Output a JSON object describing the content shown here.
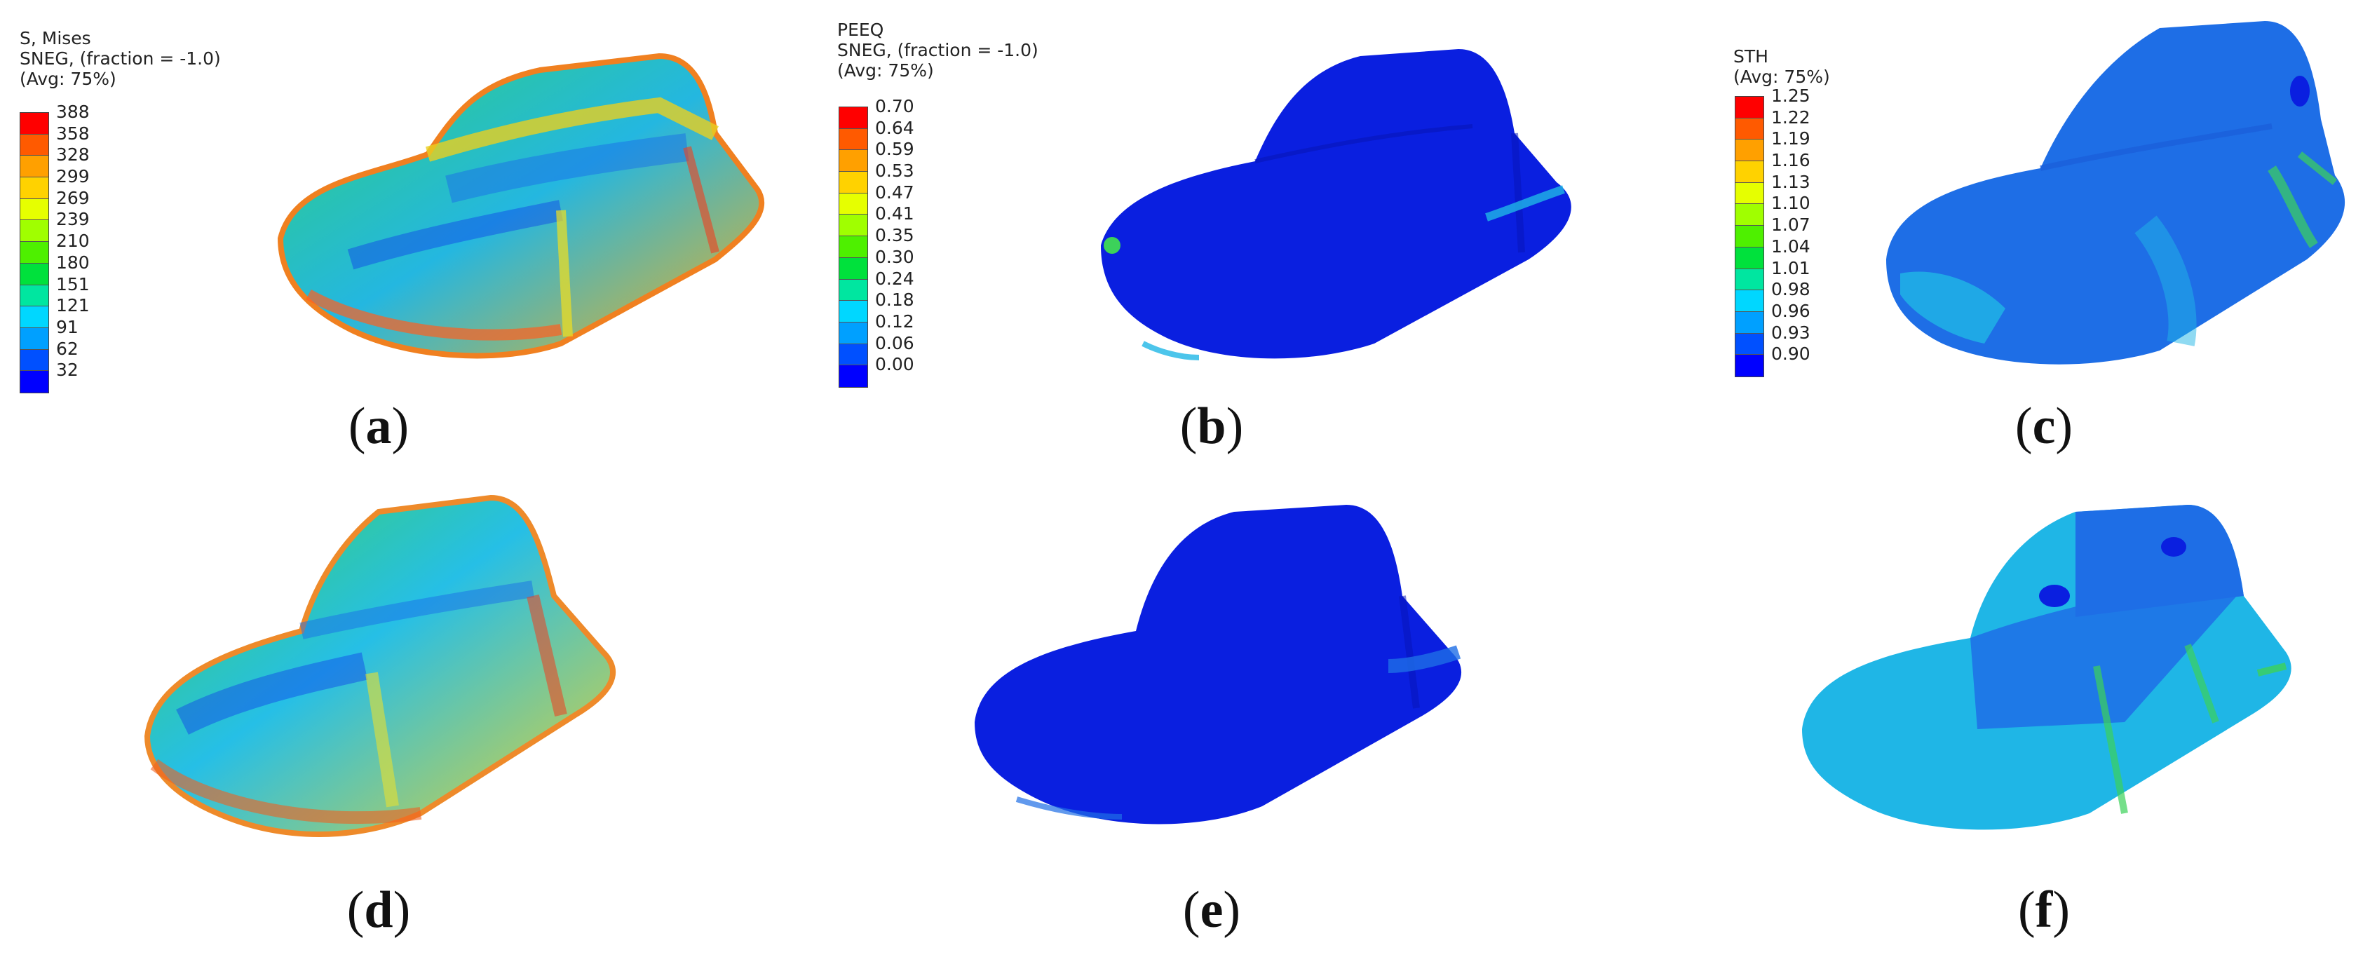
{
  "legends": {
    "a": {
      "header": [
        "S, Mises",
        "SNEG, (fraction = -1.0)",
        "(Avg: 75%)"
      ],
      "ticks": [
        "388",
        "358",
        "328",
        "299",
        "269",
        "239",
        "210",
        "180",
        "151",
        "121",
        "91",
        "62",
        "32"
      ]
    },
    "b": {
      "header": [
        "PEEQ",
        "SNEG, (fraction = -1.0)",
        "(Avg: 75%)"
      ],
      "ticks": [
        "0.70",
        "0.64",
        "0.59",
        "0.53",
        "0.47",
        "0.41",
        "0.35",
        "0.30",
        "0.24",
        "0.18",
        "0.12",
        "0.06",
        "0.00"
      ]
    },
    "c": {
      "header": [
        "STH",
        "(Avg: 75%)"
      ],
      "ticks": [
        "1.25",
        "1.22",
        "1.19",
        "1.16",
        "1.13",
        "1.10",
        "1.07",
        "1.04",
        "1.01",
        "0.98",
        "0.96",
        "0.93",
        "0.90"
      ]
    }
  },
  "captions": {
    "a": {
      "open": "(",
      "letter": "a",
      "close": ")"
    },
    "b": {
      "open": "(",
      "letter": "b",
      "close": ")"
    },
    "c": {
      "open": "(",
      "letter": "c",
      "close": ")"
    },
    "d": {
      "open": "(",
      "letter": "d",
      "close": ")"
    },
    "e": {
      "open": "(",
      "letter": "e",
      "close": ")"
    },
    "f": {
      "open": "(",
      "letter": "f",
      "close": ")"
    }
  },
  "colors": {
    "scale": [
      "#ff0000",
      "#ff5a00",
      "#ffa000",
      "#ffd200",
      "#e6ff00",
      "#a0ff00",
      "#4ef000",
      "#00e13c",
      "#00e6a0",
      "#00d7ff",
      "#00a0ff",
      "#0050ff",
      "#0000ff"
    ],
    "deep_blue": "#0a1fe0",
    "mid_blue": "#1e6ee6",
    "cyan": "#1fb6e6",
    "green": "#3cd25a",
    "yellow": "#e6e632",
    "red": "#f03c1e"
  }
}
